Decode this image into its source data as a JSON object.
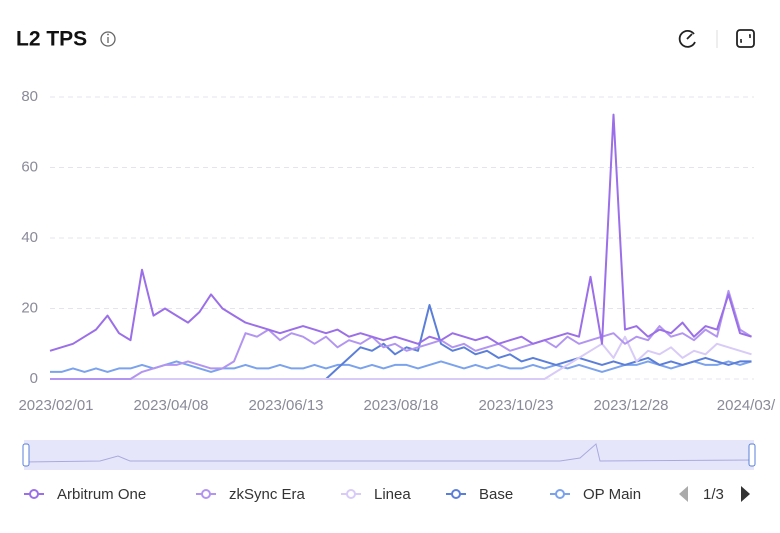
{
  "chart_data": {
    "type": "line",
    "title": "L2 TPS",
    "categories": [
      "2023/02/01",
      null,
      null,
      null,
      null,
      null,
      null,
      null,
      null,
      null,
      "2023/04/08",
      null,
      null,
      null,
      null,
      null,
      null,
      null,
      null,
      null,
      "2023/06/13",
      null,
      null,
      null,
      null,
      null,
      null,
      null,
      null,
      null,
      "2023/08/18",
      null,
      null,
      null,
      null,
      null,
      null,
      null,
      null,
      null,
      "2023/10/23",
      null,
      null,
      null,
      null,
      null,
      null,
      null,
      null,
      null,
      "2023/12/28",
      null,
      null,
      null,
      null,
      null,
      null,
      null,
      null,
      null,
      "2024/03/",
      null
    ],
    "series": [
      {
        "name": "Arbitrum One",
        "color": "#9b6fe8",
        "values": [
          8,
          9,
          10,
          12,
          14,
          18,
          13,
          11,
          31,
          18,
          20,
          18,
          16,
          19,
          24,
          20,
          18,
          16,
          15,
          14,
          13,
          14,
          15,
          14,
          13,
          14,
          12,
          13,
          12,
          11,
          12,
          11,
          10,
          12,
          11,
          13,
          12,
          11,
          12,
          10,
          11,
          12,
          10,
          11,
          12,
          13,
          12,
          29,
          10,
          75,
          14,
          15,
          12,
          14,
          13,
          16,
          12,
          15,
          14,
          24,
          13,
          12
        ]
      },
      {
        "name": "zkSync Era",
        "color": "#b295f0",
        "values": [
          0,
          0,
          0,
          0,
          0,
          0,
          0,
          0,
          2,
          3,
          4,
          4,
          5,
          4,
          3,
          3,
          5,
          13,
          12,
          14,
          11,
          13,
          12,
          10,
          12,
          9,
          11,
          10,
          12,
          9,
          10,
          8,
          9,
          10,
          11,
          9,
          10,
          8,
          9,
          10,
          8,
          9,
          10,
          11,
          9,
          12,
          10,
          11,
          12,
          13,
          10,
          12,
          11,
          15,
          12,
          13,
          11,
          14,
          12,
          25,
          14,
          12
        ]
      },
      {
        "name": "Linea",
        "color": "#d8cbf7",
        "values": [
          0,
          0,
          0,
          0,
          0,
          0,
          0,
          0,
          0,
          0,
          0,
          0,
          0,
          0,
          0,
          0,
          0,
          0,
          0,
          0,
          0,
          0,
          0,
          0,
          0,
          0,
          0,
          0,
          0,
          0,
          0,
          0,
          0,
          0,
          0,
          0,
          0,
          0,
          0,
          0,
          0,
          0,
          0,
          0,
          2,
          4,
          6,
          8,
          10,
          6,
          12,
          5,
          8,
          7,
          9,
          6,
          8,
          7,
          10,
          9,
          8,
          7
        ]
      },
      {
        "name": "Base",
        "color": "#5b7fd9",
        "values": [
          0,
          0,
          0,
          0,
          0,
          0,
          0,
          0,
          0,
          0,
          0,
          0,
          0,
          0,
          0,
          0,
          0,
          0,
          0,
          0,
          0,
          0,
          0,
          0,
          0,
          3,
          6,
          9,
          8,
          10,
          7,
          9,
          8,
          21,
          10,
          8,
          9,
          7,
          8,
          6,
          7,
          5,
          6,
          5,
          4,
          5,
          6,
          5,
          4,
          5,
          4,
          5,
          6,
          4,
          5,
          4,
          5,
          6,
          5,
          4,
          5,
          5
        ]
      },
      {
        "name": "OP Main",
        "color": "#7ba2ec",
        "values": [
          2,
          2,
          3,
          2,
          3,
          2,
          3,
          3,
          4,
          3,
          4,
          5,
          4,
          3,
          2,
          3,
          3,
          4,
          3,
          3,
          4,
          3,
          3,
          4,
          3,
          4,
          4,
          3,
          4,
          3,
          4,
          4,
          3,
          4,
          5,
          4,
          3,
          4,
          3,
          4,
          3,
          3,
          4,
          3,
          4,
          3,
          4,
          3,
          2,
          3,
          4,
          4,
          5,
          4,
          3,
          4,
          5,
          4,
          4,
          5,
          4,
          5
        ]
      }
    ],
    "ylim": [
      0,
      80
    ],
    "yticks": [
      0,
      20,
      40,
      60,
      80
    ],
    "grid": true,
    "legend": "bottom",
    "legend_page": "1/3"
  }
}
